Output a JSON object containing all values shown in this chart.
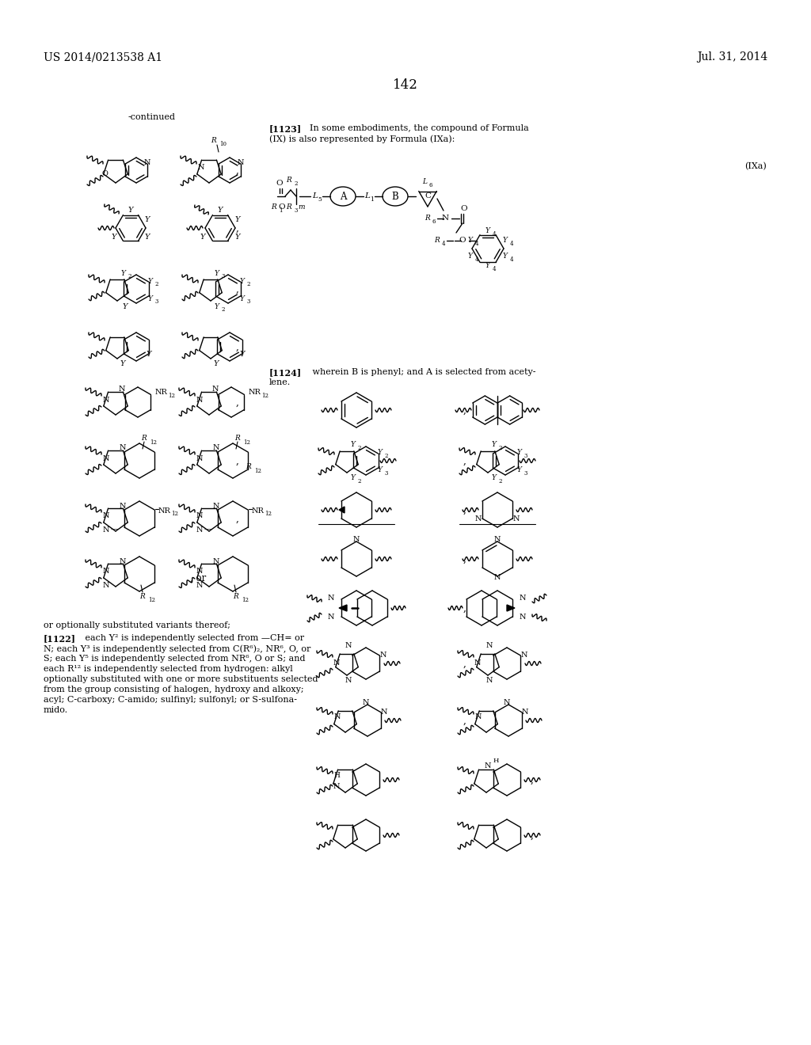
{
  "page_number": "142",
  "patent_number": "US 2014/0213538 A1",
  "patent_date": "Jul. 31, 2014",
  "background_color": "#ffffff",
  "text_color": "#000000",
  "font_size_header": 10,
  "font_size_page_num": 12,
  "font_size_body": 8.0,
  "font_size_label": 7.0,
  "font_size_sub": 5.5
}
